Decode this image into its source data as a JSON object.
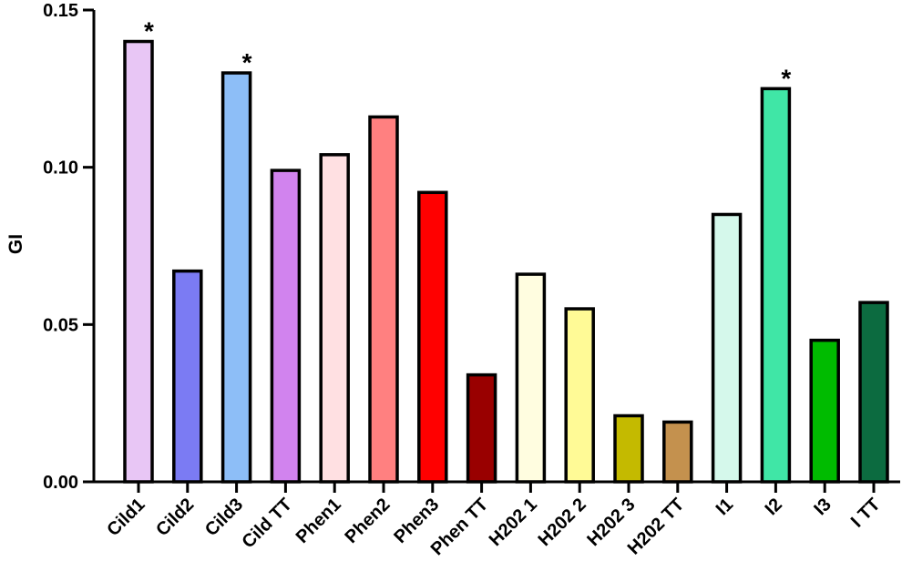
{
  "chart_data": {
    "type": "bar",
    "ylabel": "GI",
    "xlabel": "",
    "ylim": [
      0,
      0.15
    ],
    "yticks": [
      "0.00",
      "0.05",
      "0.10",
      "0.15"
    ],
    "ytick_values": [
      0,
      0.05,
      0.1,
      0.15
    ],
    "grid": false,
    "categories": [
      "Cild1",
      "Cild2",
      "Cild3",
      "Cild TT",
      "Phen1",
      "Phen2",
      "Phen3",
      "Phen TT",
      "H202 1",
      "H202 2",
      "H202 3",
      "H202 TT",
      "I1",
      "I2",
      "I3",
      "I TT"
    ],
    "values": [
      0.14,
      0.067,
      0.13,
      0.099,
      0.104,
      0.116,
      0.092,
      0.034,
      0.066,
      0.055,
      0.021,
      0.019,
      0.085,
      0.125,
      0.045,
      0.057
    ],
    "colors": [
      "#E8C6F5",
      "#7B7BF3",
      "#8DBEF7",
      "#D183EE",
      "#FFE0E2",
      "#FF8080",
      "#FF0000",
      "#990000",
      "#FFFDE0",
      "#FFFA96",
      "#C4BA00",
      "#C4914E",
      "#D5F8EB",
      "#40E6A6",
      "#00BB00",
      "#0C6B40"
    ],
    "annotations": [
      {
        "category": "Cild1",
        "text": "*"
      },
      {
        "category": "Cild3",
        "text": "*"
      },
      {
        "category": "I2",
        "text": "*"
      }
    ]
  }
}
